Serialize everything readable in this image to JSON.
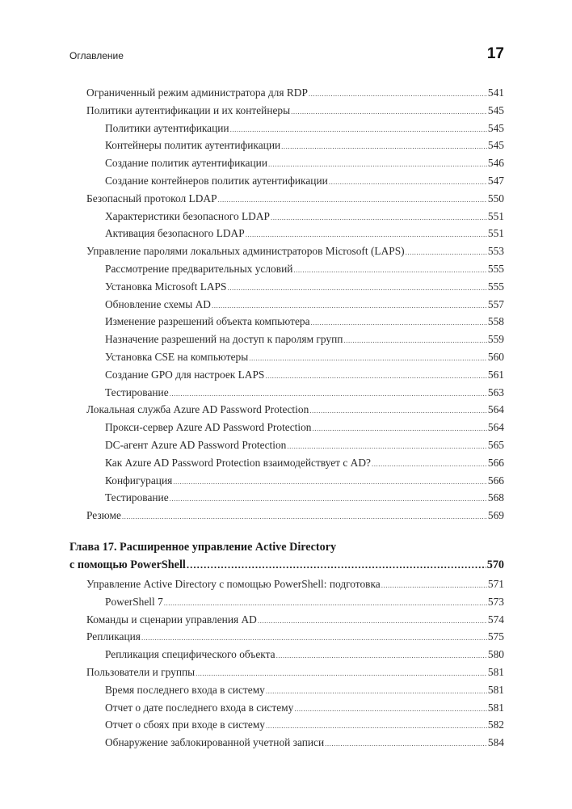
{
  "header": {
    "section": "Оглавление",
    "page_number": "17"
  },
  "entries_before": [
    {
      "level": 1,
      "title": "Ограниченный режим администратора для RDP",
      "page": "541"
    },
    {
      "level": 1,
      "title": "Политики аутентификации и их контейнеры",
      "page": "545"
    },
    {
      "level": 2,
      "title": "Политики аутентификации",
      "page": "545"
    },
    {
      "level": 2,
      "title": "Контейнеры политик аутентификации",
      "page": "545"
    },
    {
      "level": 2,
      "title": "Создание политик аутентификации",
      "page": "546"
    },
    {
      "level": 2,
      "title": "Создание контейнеров политик аутентификации",
      "page": "547"
    },
    {
      "level": 1,
      "title": "Безопасный протокол LDAP",
      "page": "550"
    },
    {
      "level": 2,
      "title": "Характеристики безопасного LDAP",
      "page": "551"
    },
    {
      "level": 2,
      "title": "Активация безопасного LDAP",
      "page": "551"
    },
    {
      "level": 1,
      "title": "Управление паролями локальных администраторов Microsoft (LAPS)",
      "page": "553"
    },
    {
      "level": 2,
      "title": "Рассмотрение предварительных условий",
      "page": "555"
    },
    {
      "level": 2,
      "title": "Установка Microsoft LAPS",
      "page": "555"
    },
    {
      "level": 2,
      "title": "Обновление схемы AD",
      "page": "557"
    },
    {
      "level": 2,
      "title": "Изменение разрешений объекта компьютера",
      "page": "558"
    },
    {
      "level": 2,
      "title": "Назначение разрешений на доступ к паролям групп",
      "page": "559"
    },
    {
      "level": 2,
      "title": "Установка CSE на компьютеры",
      "page": "560"
    },
    {
      "level": 2,
      "title": "Создание GPO для настроек LAPS",
      "page": "561"
    },
    {
      "level": 2,
      "title": "Тестирование",
      "page": "563"
    },
    {
      "level": 1,
      "title": "Локальная служба Azure AD Password Protection",
      "page": "564"
    },
    {
      "level": 2,
      "title": "Прокси-сервер Azure AD Password Protection",
      "page": "564"
    },
    {
      "level": 2,
      "title": "DC-агент Azure AD Password Protection",
      "page": "565"
    },
    {
      "level": 2,
      "title": "Как Azure AD Password Protection взаимодействует с AD?",
      "page": "566"
    },
    {
      "level": 2,
      "title": "Конфигурация",
      "page": "566"
    },
    {
      "level": 2,
      "title": "Тестирование",
      "page": "568"
    },
    {
      "level": 1,
      "title": "Резюме",
      "page": "569"
    }
  ],
  "chapter": {
    "line1": "Глава 17. Расширенное управление Active Directory",
    "line2": "с помощью PowerShell",
    "page": "570"
  },
  "entries_after": [
    {
      "level": 1,
      "title": "Управление Active Directory с помощью PowerShell: подготовка",
      "page": "571"
    },
    {
      "level": 2,
      "title": "PowerShell 7",
      "page": "573"
    },
    {
      "level": 1,
      "title": "Команды и сценарии управления AD",
      "page": "574"
    },
    {
      "level": 1,
      "title": "Репликация",
      "page": "575"
    },
    {
      "level": 2,
      "title": "Репликация специфического объекта",
      "page": "580"
    },
    {
      "level": 1,
      "title": "Пользователи и группы",
      "page": "581"
    },
    {
      "level": 2,
      "title": "Время последнего входа в систему",
      "page": "581"
    },
    {
      "level": 2,
      "title": "Отчет о дате последнего входа в систему",
      "page": "581"
    },
    {
      "level": 2,
      "title": "Отчет о сбоях при входе в систему",
      "page": "582"
    },
    {
      "level": 2,
      "title": "Обнаружение заблокированной учетной записи",
      "page": "584"
    }
  ]
}
